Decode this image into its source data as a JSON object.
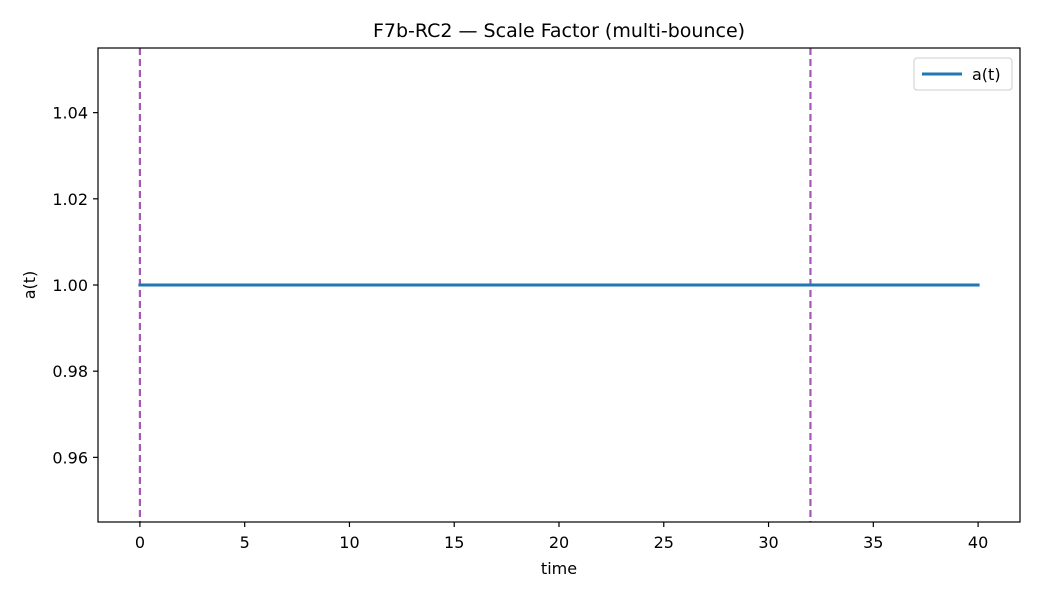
{
  "chart_data": {
    "type": "line",
    "title": "F7b-RC2 — Scale Factor (multi-bounce)",
    "xlabel": "time",
    "ylabel": "a(t)",
    "xlim": [
      -2,
      42
    ],
    "ylim": [
      0.945,
      1.055
    ],
    "xticks": [
      0,
      5,
      10,
      15,
      20,
      25,
      30,
      35,
      40
    ],
    "xtick_labels": [
      "0",
      "5",
      "10",
      "15",
      "20",
      "25",
      "30",
      "35",
      "40"
    ],
    "yticks": [
      0.96,
      0.98,
      1.0,
      1.02,
      1.04
    ],
    "ytick_labels": [
      "0.96",
      "0.98",
      "1.00",
      "1.02",
      "1.04"
    ],
    "grid": false,
    "legend": {
      "placement": "top-right",
      "entries": [
        "a(t)"
      ]
    },
    "series": [
      {
        "name": "a(t)",
        "color": "#1f77b4",
        "x": [
          0,
          40
        ],
        "y": [
          1.0,
          1.0
        ]
      }
    ],
    "vlines": [
      {
        "x": 0,
        "color": "#a558b5",
        "style": "dashed"
      },
      {
        "x": 32,
        "color": "#a558b5",
        "style": "dashed"
      }
    ]
  }
}
